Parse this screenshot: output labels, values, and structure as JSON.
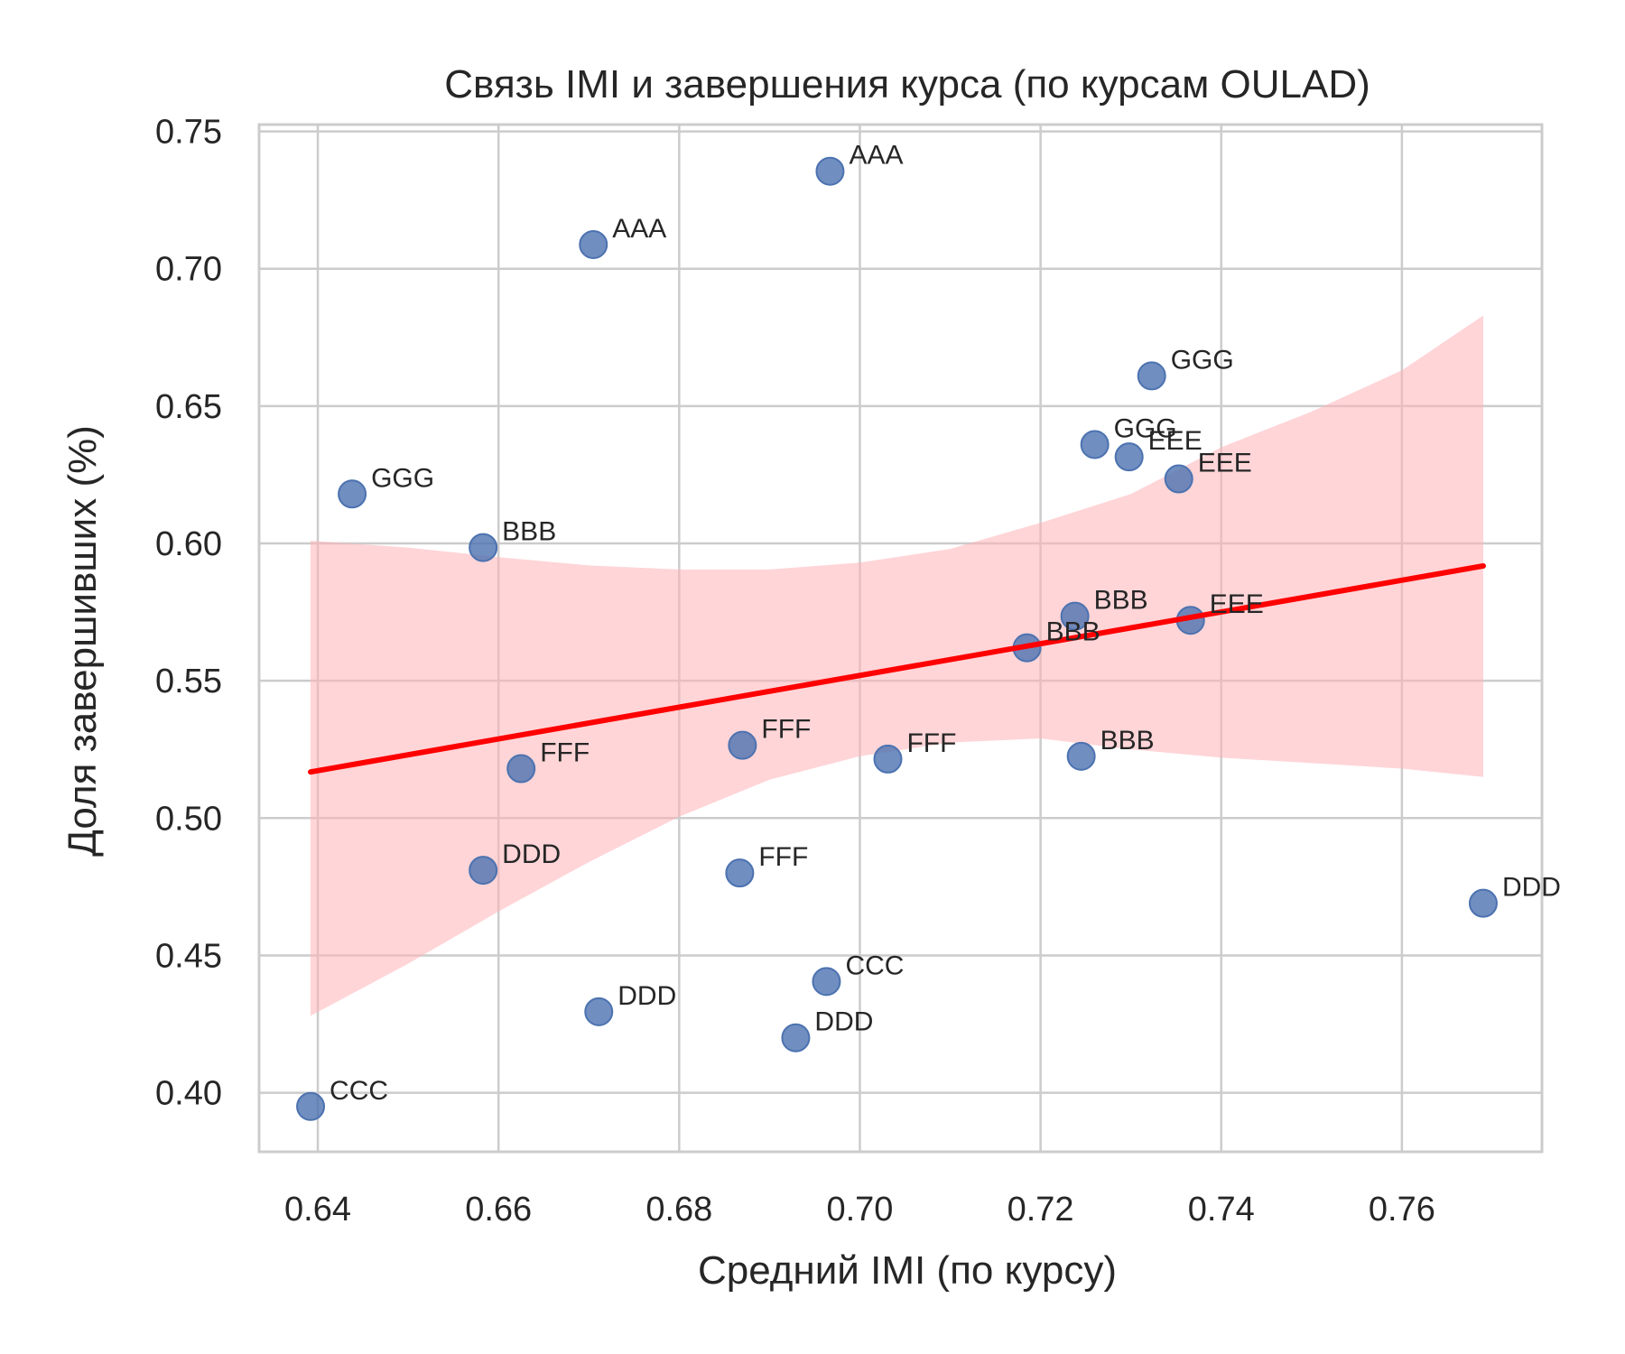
{
  "chart_data": {
    "type": "scatter",
    "title": "Связь IMI и завершения курса (по курсам OULAD)",
    "xlabel": "Средний IMI (по курсу)",
    "ylabel": "Доля завершивших (%)",
    "xlim": [
      0.6335,
      0.7755
    ],
    "ylim": [
      0.3785,
      0.7525
    ],
    "xticks": [
      "0.64",
      "0.66",
      "0.68",
      "0.70",
      "0.72",
      "0.74",
      "0.76"
    ],
    "yticks": [
      "0.40",
      "0.45",
      "0.50",
      "0.55",
      "0.60",
      "0.65",
      "0.70",
      "0.75"
    ],
    "grid": true,
    "colors": {
      "point": "#4c72b0",
      "regression_line": "#ff0000",
      "confidence_band": "#ffb3b8",
      "grid": "#cccccc",
      "spine": "#cccccc"
    },
    "points": [
      {
        "x": 0.6967,
        "y": 0.7355,
        "label": "AAA"
      },
      {
        "x": 0.6705,
        "y": 0.7088,
        "label": "AAA"
      },
      {
        "x": 0.7323,
        "y": 0.661,
        "label": "GGG"
      },
      {
        "x": 0.726,
        "y": 0.636,
        "label": "GGG"
      },
      {
        "x": 0.7298,
        "y": 0.6315,
        "label": "EEE"
      },
      {
        "x": 0.7353,
        "y": 0.6235,
        "label": "EEE"
      },
      {
        "x": 0.6438,
        "y": 0.618,
        "label": "GGG"
      },
      {
        "x": 0.6583,
        "y": 0.5985,
        "label": "BBB"
      },
      {
        "x": 0.7238,
        "y": 0.5735,
        "label": "BBB"
      },
      {
        "x": 0.7366,
        "y": 0.572,
        "label": "EEE"
      },
      {
        "x": 0.7185,
        "y": 0.562,
        "label": "BBB"
      },
      {
        "x": 0.687,
        "y": 0.5265,
        "label": "FFF"
      },
      {
        "x": 0.7031,
        "y": 0.5215,
        "label": "FFF"
      },
      {
        "x": 0.7245,
        "y": 0.5225,
        "label": "BBB"
      },
      {
        "x": 0.6625,
        "y": 0.518,
        "label": "FFF"
      },
      {
        "x": 0.6583,
        "y": 0.481,
        "label": "DDD"
      },
      {
        "x": 0.6867,
        "y": 0.48,
        "label": "FFF"
      },
      {
        "x": 0.769,
        "y": 0.469,
        "label": "DDD"
      },
      {
        "x": 0.6963,
        "y": 0.4405,
        "label": "CCC"
      },
      {
        "x": 0.6711,
        "y": 0.4295,
        "label": "DDD"
      },
      {
        "x": 0.6929,
        "y": 0.42,
        "label": "DDD"
      },
      {
        "x": 0.6392,
        "y": 0.395,
        "label": "CCC"
      }
    ],
    "regression_line": {
      "x": [
        0.6392,
        0.769
      ],
      "y": [
        0.5168,
        0.5918
      ]
    },
    "confidence_band": {
      "x": [
        0.6392,
        0.65,
        0.66,
        0.67,
        0.68,
        0.69,
        0.7,
        0.71,
        0.72,
        0.73,
        0.74,
        0.75,
        0.76,
        0.769
      ],
      "upper": [
        0.601,
        0.5985,
        0.595,
        0.592,
        0.5905,
        0.5905,
        0.593,
        0.598,
        0.6075,
        0.618,
        0.635,
        0.648,
        0.663,
        0.683
      ],
      "lower": [
        0.428,
        0.447,
        0.466,
        0.484,
        0.5005,
        0.514,
        0.5225,
        0.5275,
        0.529,
        0.525,
        0.522,
        0.52,
        0.518,
        0.515
      ]
    }
  }
}
